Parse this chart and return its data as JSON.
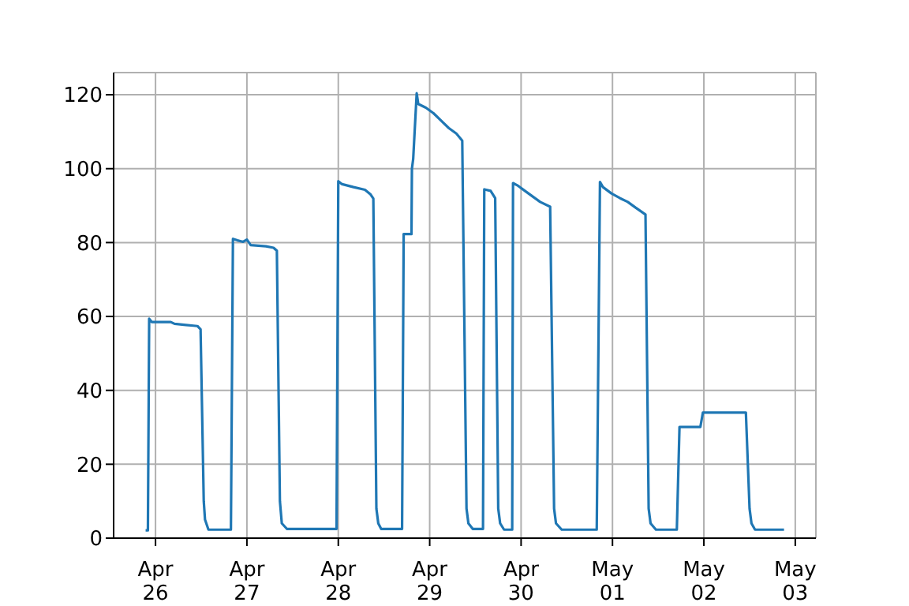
{
  "chart_data": {
    "type": "line",
    "x": [
      "--04-25T21:24",
      "--04-25T22:00",
      "--04-25T22:20",
      "--04-25T23:00",
      "--04-26T04:00",
      "--04-26T05:00",
      "--04-26T08:00",
      "--04-26T10:00",
      "--04-26T11:00",
      "--04-26T11:50",
      "--04-26T12:40",
      "--04-26T13:00",
      "--04-26T13:54",
      "--04-26T19:48",
      "--04-26T20:20",
      "--04-26T21:30",
      "--04-26T23:00",
      "--04-27T00:00",
      "--04-27T01:00",
      "--04-27T05:00",
      "--04-27T07:00",
      "--04-27T07:52",
      "--04-27T08:40",
      "--04-27T09:10",
      "--04-27T10:30",
      "--04-27T23:32",
      "--04-28T00:00",
      "--04-28T01:00",
      "--04-28T04:00",
      "--04-28T07:00",
      "--04-28T08:30",
      "--04-28T09:12",
      "--04-28T10:00",
      "--04-28T10:30",
      "--04-28T11:15",
      "--04-28T16:45",
      "--04-28T17:10",
      "--04-28T19:13",
      "--04-28T19:20",
      "--04-28T19:40",
      "--04-28T20:35",
      "--04-28T21:00",
      "--04-28T23:00",
      "--04-29T01:00",
      "--04-29T03:00",
      "--04-29T05:00",
      "--04-29T07:00",
      "--04-29T08:33",
      "--04-29T09:40",
      "--04-29T10:10",
      "--04-29T11:18",
      "--04-29T14:00",
      "--04-29T14:20",
      "--04-29T16:00",
      "--04-29T17:12",
      "--04-29T18:00",
      "--04-29T18:30",
      "--04-29T19:32",
      "--04-29T21:40",
      "--04-29T21:53",
      "--04-29T23:00",
      "--04-30T01:00",
      "--04-30T03:00",
      "--04-30T05:00",
      "--04-30T07:38",
      "--04-30T08:40",
      "--04-30T09:10",
      "--04-30T10:40",
      "--04-30T19:52",
      "--04-30T20:43",
      "--04-30T21:30",
      "--04-30T23:43",
      "--05-01T02:00",
      "--05-01T04:00",
      "--05-01T06:00",
      "--05-01T08:40",
      "--05-01T09:30",
      "--05-01T10:00",
      "--05-01T11:25",
      "--05-01T16:54",
      "--05-01T17:36",
      "--05-01T23:05",
      "--05-01T23:45",
      "--05-02T11:02",
      "--05-02T12:00",
      "--05-02T12:30",
      "--05-02T13:26",
      "--05-02T21:03"
    ],
    "series": [
      {
        "color": "#1f77b4",
        "values": [
          2.1,
          2.1,
          59.4,
          58.5,
          58.5,
          58,
          57.7,
          57.5,
          57.4,
          56.5,
          10,
          5,
          2.3,
          2.3,
          81,
          80.6,
          80.2,
          80.8,
          79.3,
          79,
          78.6,
          77.8,
          10,
          4,
          2.5,
          2.5,
          96.6,
          95.8,
          95,
          94.3,
          93,
          91.9,
          8,
          4,
          2.5,
          2.5,
          82.3,
          82.3,
          100,
          102.6,
          120.4,
          117.5,
          116.5,
          115,
          113,
          111,
          109.5,
          107.6,
          8,
          4,
          2.5,
          2.5,
          94.4,
          94,
          92,
          8,
          4,
          2.3,
          2.3,
          96.1,
          95.5,
          94,
          92.5,
          91,
          89.7,
          8,
          4,
          2.3,
          2.3,
          96.4,
          95,
          93.3,
          92,
          91,
          89.5,
          87.6,
          8,
          4,
          2.3,
          2.3,
          30.1,
          30.1,
          34,
          34,
          8,
          4,
          2.3,
          2.3
        ]
      }
    ],
    "xlim": [
      "--04-25T13:00",
      "--05-03T05:25"
    ],
    "xticks": [
      {
        "value": "--04-26",
        "label": "Apr\n26"
      },
      {
        "value": "--04-27",
        "label": "Apr\n27"
      },
      {
        "value": "--04-28",
        "label": "Apr\n28"
      },
      {
        "value": "--04-29",
        "label": "Apr\n29"
      },
      {
        "value": "--04-30",
        "label": "Apr\n30"
      },
      {
        "value": "--05-01",
        "label": "May\n01"
      },
      {
        "value": "--05-02",
        "label": "May\n02"
      },
      {
        "value": "--05-03",
        "label": "May\n03"
      }
    ],
    "ylim": [
      0,
      126
    ],
    "yticks": [
      0,
      20,
      40,
      60,
      80,
      100,
      120
    ],
    "grid": true,
    "line_style": "solid",
    "marker": "none"
  }
}
